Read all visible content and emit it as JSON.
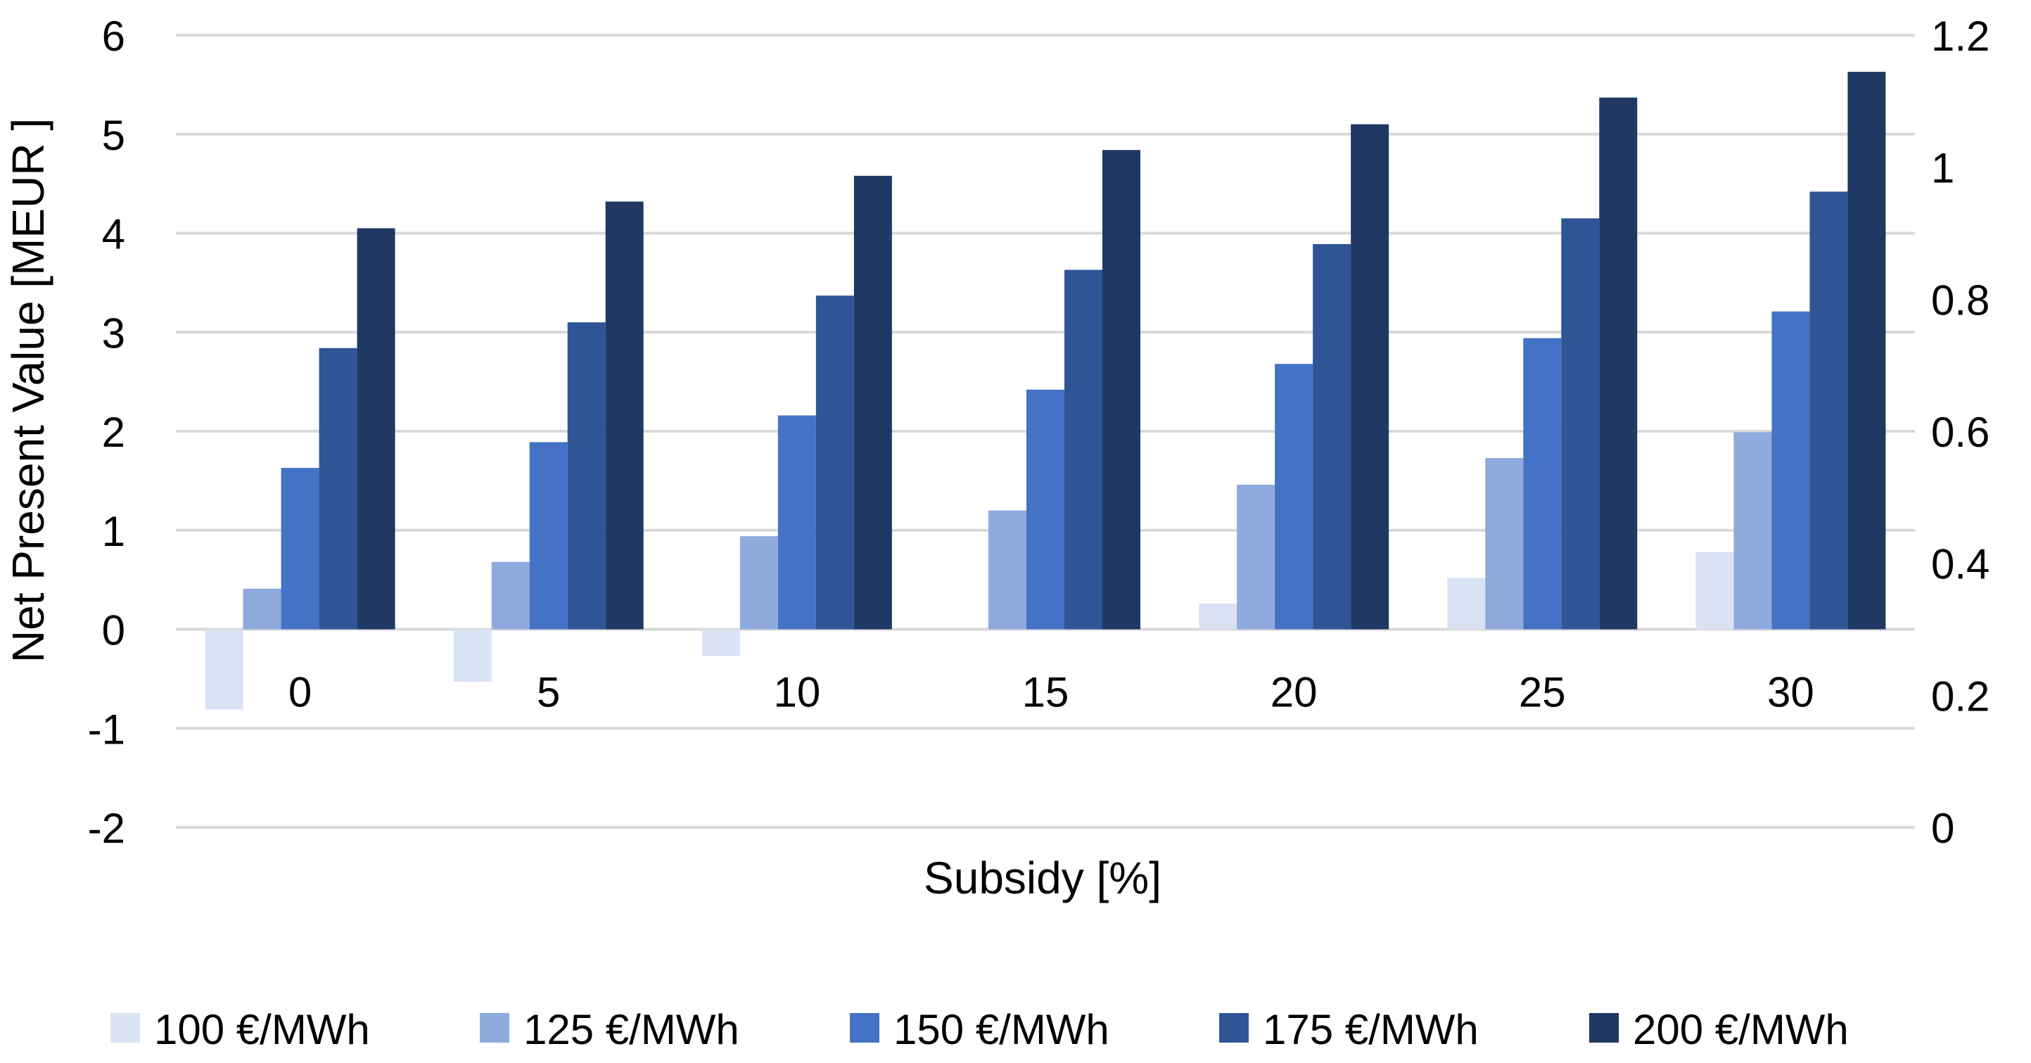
{
  "chart_data": {
    "type": "bar",
    "title": "",
    "xlabel": "Subsidy [%]",
    "ylabel": "Net Present Value [MEUR ]",
    "ylim": [
      -2,
      6
    ],
    "y_ticks": [
      -2,
      -1,
      0,
      1,
      2,
      3,
      4,
      5,
      6
    ],
    "y_tick_labels": [
      "-2",
      "-1",
      "0",
      "1",
      "2",
      "3",
      "4",
      "5",
      "6"
    ],
    "y2lim": [
      0,
      1.2
    ],
    "y2_ticks": [
      0,
      0.2,
      0.4,
      0.6,
      0.8,
      1,
      1.2
    ],
    "y2_tick_labels": [
      "0",
      "0.2",
      "0.4",
      "0.6",
      "0.8",
      "1",
      "1.2"
    ],
    "grid": true,
    "legend_position": "bottom",
    "categories": [
      "0",
      "5",
      "10",
      "15",
      "20",
      "25",
      "30"
    ],
    "series": [
      {
        "name": "100 €/MWh",
        "color": "#dae3f3",
        "values": [
          -0.81,
          -0.53,
          -0.27,
          0.0,
          0.26,
          0.52,
          0.78
        ]
      },
      {
        "name": "125 €/MWh",
        "color": "#8faadc",
        "values": [
          0.41,
          0.68,
          0.94,
          1.2,
          1.46,
          1.73,
          1.99
        ]
      },
      {
        "name": "150 €/MWh",
        "color": "#4472c4",
        "values": [
          1.63,
          1.89,
          2.16,
          2.42,
          2.68,
          2.94,
          3.21
        ]
      },
      {
        "name": "175 €/MWh",
        "color": "#2f5597",
        "values": [
          2.84,
          3.1,
          3.37,
          3.63,
          3.89,
          4.15,
          4.42
        ]
      },
      {
        "name": "200 €/MWh",
        "color": "#203864",
        "values": [
          4.05,
          4.32,
          4.58,
          4.84,
          5.1,
          5.37,
          5.63
        ]
      }
    ]
  }
}
